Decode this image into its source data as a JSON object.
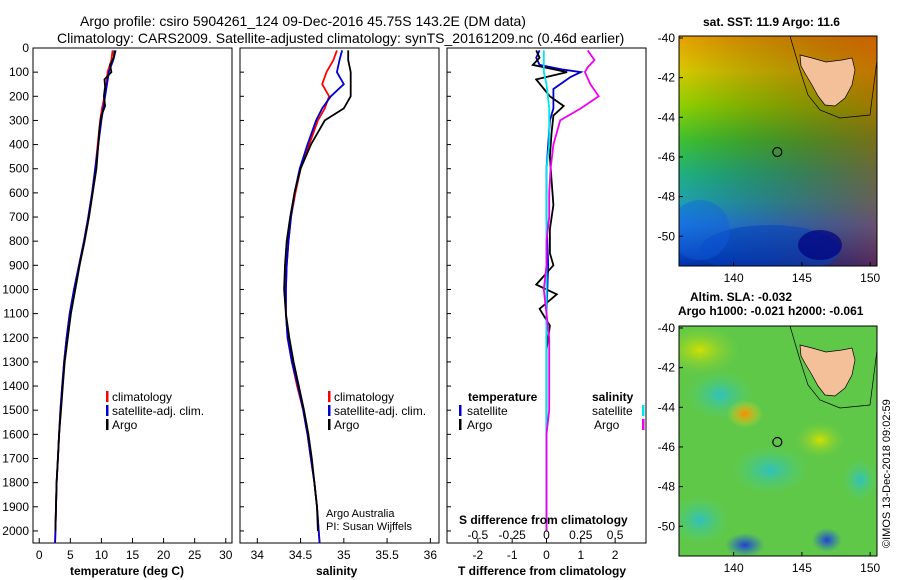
{
  "header": {
    "line1": "Argo profile: csiro 5904261_124 09-Dec-2016 45.75S 143.2E (DM data)",
    "line2": "Climatology: CARS2009. Satellite-adjusted climatology: synTS_20161209.nc (0.46d earlier)"
  },
  "colors": {
    "climatology": "#ff0000",
    "satellite": "#0000cc",
    "argo": "#000000",
    "sat_S": "#00e5ee",
    "argo_S": "#ee00ee"
  },
  "chart_data": [
    {
      "type": "line",
      "id": "temperature",
      "xlabel": "temperature (deg C)",
      "ylabel": "",
      "xlim": [
        -1,
        31
      ],
      "ylim": [
        2050,
        0
      ],
      "xticks": [
        "0",
        "5",
        "10",
        "15",
        "20",
        "25",
        "30"
      ],
      "yticks": [
        "0",
        "100",
        "200",
        "300",
        "400",
        "500",
        "600",
        "700",
        "800",
        "900",
        "1000",
        "1100",
        "1200",
        "1300",
        "1400",
        "1500",
        "1600",
        "1700",
        "1800",
        "1900",
        "2000"
      ],
      "legend": [
        "climatology",
        "satellite-adj. clim.",
        "Argo"
      ],
      "series": [
        {
          "name": "climatology",
          "points": [
            [
              11.8,
              10
            ],
            [
              11.6,
              50
            ],
            [
              11.0,
              100
            ],
            [
              10.8,
              150
            ],
            [
              10.5,
              200
            ],
            [
              10.1,
              250
            ],
            [
              9.8,
              300
            ],
            [
              9.4,
              400
            ],
            [
              9.0,
              500
            ],
            [
              8.5,
              600
            ],
            [
              7.9,
              700
            ],
            [
              7.2,
              800
            ],
            [
              6.4,
              900
            ],
            [
              5.6,
              1000
            ],
            [
              4.9,
              1100
            ],
            [
              4.4,
              1200
            ],
            [
              4.0,
              1300
            ],
            [
              3.7,
              1400
            ],
            [
              3.4,
              1500
            ],
            [
              3.2,
              1600
            ],
            [
              3.0,
              1700
            ],
            [
              2.8,
              1800
            ],
            [
              2.7,
              1900
            ],
            [
              2.6,
              2000
            ],
            [
              2.55,
              2050
            ]
          ]
        },
        {
          "name": "satellite-adj. clim.",
          "points": [
            [
              12.3,
              10
            ],
            [
              11.9,
              50
            ],
            [
              11.2,
              100
            ],
            [
              10.9,
              150
            ],
            [
              10.6,
              200
            ],
            [
              10.3,
              250
            ],
            [
              10.0,
              300
            ],
            [
              9.5,
              400
            ],
            [
              9.0,
              500
            ],
            [
              8.5,
              600
            ],
            [
              7.9,
              700
            ],
            [
              7.2,
              800
            ],
            [
              6.4,
              900
            ],
            [
              5.6,
              1000
            ],
            [
              4.9,
              1100
            ],
            [
              4.4,
              1200
            ],
            [
              4.0,
              1300
            ],
            [
              3.7,
              1400
            ],
            [
              3.4,
              1500
            ],
            [
              3.2,
              1600
            ],
            [
              3.0,
              1700
            ],
            [
              2.8,
              1800
            ],
            [
              2.7,
              1900
            ],
            [
              2.6,
              2000
            ],
            [
              2.55,
              2050
            ]
          ]
        },
        {
          "name": "Argo",
          "points": [
            [
              12.1,
              10
            ],
            [
              12.0,
              40
            ],
            [
              11.4,
              70
            ],
            [
              11.6,
              100
            ],
            [
              10.5,
              130
            ],
            [
              10.6,
              160
            ],
            [
              10.4,
              200
            ],
            [
              10.6,
              240
            ],
            [
              10.0,
              280
            ],
            [
              9.7,
              330
            ],
            [
              9.5,
              400
            ],
            [
              9.2,
              500
            ],
            [
              8.6,
              600
            ],
            [
              8.0,
              700
            ],
            [
              7.3,
              800
            ],
            [
              6.5,
              900
            ],
            [
              5.8,
              1000
            ],
            [
              5.1,
              1100
            ],
            [
              4.6,
              1200
            ],
            [
              4.1,
              1300
            ],
            [
              3.8,
              1400
            ],
            [
              3.5,
              1500
            ],
            [
              3.2,
              1600
            ],
            [
              3.0,
              1700
            ],
            [
              2.8,
              1800
            ],
            [
              2.7,
              1900
            ],
            [
              2.6,
              2000
            ]
          ]
        }
      ]
    },
    {
      "type": "line",
      "id": "salinity",
      "xlabel": "salinity",
      "xlim": [
        33.8,
        36.1
      ],
      "ylim": [
        2050,
        0
      ],
      "xticks": [
        "34",
        "34.5",
        "35",
        "35.5",
        "36"
      ],
      "legend": [
        "climatology",
        "satellite-adj. clim.",
        "Argo"
      ],
      "annotation": [
        "Argo Australia",
        "PI: Susan Wijffels"
      ],
      "series": [
        {
          "name": "climatology",
          "points": [
            [
              34.92,
              10
            ],
            [
              34.88,
              50
            ],
            [
              34.8,
              100
            ],
            [
              34.75,
              150
            ],
            [
              34.83,
              200
            ],
            [
              34.78,
              250
            ],
            [
              34.7,
              300
            ],
            [
              34.6,
              400
            ],
            [
              34.5,
              500
            ],
            [
              34.44,
              600
            ],
            [
              34.39,
              700
            ],
            [
              34.36,
              800
            ],
            [
              34.34,
              900
            ],
            [
              34.33,
              1000
            ],
            [
              34.33,
              1100
            ],
            [
              34.35,
              1200
            ],
            [
              34.4,
              1300
            ],
            [
              34.46,
              1400
            ],
            [
              34.53,
              1500
            ],
            [
              34.58,
              1600
            ],
            [
              34.62,
              1700
            ],
            [
              34.66,
              1800
            ],
            [
              34.69,
              1900
            ],
            [
              34.71,
              2000
            ],
            [
              34.72,
              2050
            ]
          ]
        },
        {
          "name": "satellite-adj. clim.",
          "points": [
            [
              34.98,
              10
            ],
            [
              34.95,
              50
            ],
            [
              34.92,
              100
            ],
            [
              35.0,
              150
            ],
            [
              34.85,
              200
            ],
            [
              34.75,
              250
            ],
            [
              34.68,
              300
            ],
            [
              34.58,
              400
            ],
            [
              34.49,
              500
            ],
            [
              34.43,
              600
            ],
            [
              34.39,
              700
            ],
            [
              34.36,
              800
            ],
            [
              34.34,
              900
            ],
            [
              34.33,
              1000
            ],
            [
              34.33,
              1100
            ],
            [
              34.35,
              1200
            ],
            [
              34.4,
              1300
            ],
            [
              34.47,
              1400
            ],
            [
              34.53,
              1500
            ],
            [
              34.58,
              1600
            ],
            [
              34.62,
              1700
            ],
            [
              34.66,
              1800
            ],
            [
              34.69,
              1900
            ],
            [
              34.71,
              2000
            ],
            [
              34.72,
              2050
            ]
          ]
        },
        {
          "name": "Argo",
          "points": [
            [
              35.05,
              10
            ],
            [
              35.05,
              50
            ],
            [
              35.08,
              100
            ],
            [
              35.08,
              150
            ],
            [
              35.08,
              200
            ],
            [
              35.0,
              250
            ],
            [
              34.78,
              300
            ],
            [
              34.62,
              400
            ],
            [
              34.5,
              500
            ],
            [
              34.43,
              600
            ],
            [
              34.38,
              700
            ],
            [
              34.34,
              800
            ],
            [
              34.32,
              900
            ],
            [
              34.31,
              1000
            ],
            [
              34.33,
              1100
            ],
            [
              34.37,
              1200
            ],
            [
              34.42,
              1300
            ],
            [
              34.48,
              1400
            ],
            [
              34.54,
              1500
            ],
            [
              34.59,
              1600
            ],
            [
              34.63,
              1700
            ],
            [
              34.66,
              1800
            ],
            [
              34.69,
              1900
            ],
            [
              34.7,
              2000
            ]
          ]
        }
      ]
    },
    {
      "type": "line",
      "id": "difference",
      "xlabel": "T difference from climatology",
      "xlabel_top": "S difference from climatology",
      "xlim": [
        -2.9,
        2.9
      ],
      "ylim": [
        2050,
        0
      ],
      "xticks": [
        "-2",
        "-1",
        "0",
        "1",
        "2"
      ],
      "xticks_S": [
        "-0.5",
        "-0.25",
        "0",
        "0.25",
        "0.5"
      ],
      "legend_left_title": "temperature",
      "legend_right_title": "salinity",
      "legend_left": [
        "satellite",
        "Argo"
      ],
      "legend_right": [
        "satellite",
        "Argo"
      ],
      "series": [
        {
          "name": "T satellite",
          "points": [
            [
              -0.2,
              10
            ],
            [
              -0.3,
              40
            ],
            [
              -0.2,
              70
            ],
            [
              0.5,
              90
            ],
            [
              1.0,
              100
            ],
            [
              0.7,
              120
            ],
            [
              0.2,
              170
            ],
            [
              0.2,
              250
            ],
            [
              0.1,
              300
            ],
            [
              0.05,
              400
            ],
            [
              0.0,
              500
            ],
            [
              0.0,
              700
            ],
            [
              0.05,
              900
            ],
            [
              0.0,
              1100
            ],
            [
              0.0,
              1300
            ],
            [
              0.0,
              1500
            ],
            [
              0.0,
              1700
            ],
            [
              0.0,
              2000
            ]
          ]
        },
        {
          "name": "T Argo",
          "points": [
            [
              -0.3,
              10
            ],
            [
              -0.2,
              40
            ],
            [
              -0.4,
              70
            ],
            [
              0.6,
              100
            ],
            [
              -0.3,
              130
            ],
            [
              0.1,
              200
            ],
            [
              0.5,
              240
            ],
            [
              0.2,
              280
            ],
            [
              0.15,
              350
            ],
            [
              0.1,
              450
            ],
            [
              0.15,
              550
            ],
            [
              0.2,
              650
            ],
            [
              0.1,
              750
            ],
            [
              0.1,
              850
            ],
            [
              0.2,
              900
            ],
            [
              -0.3,
              980
            ],
            [
              0.3,
              1020
            ],
            [
              -0.2,
              1080
            ],
            [
              0.1,
              1150
            ],
            [
              0.0,
              1250
            ],
            [
              0.0,
              1500
            ],
            [
              0.0,
              1800
            ],
            [
              0.0,
              2000
            ]
          ]
        },
        {
          "name": "S satellite",
          "points": [
            [
              -0.02,
              10
            ],
            [
              -0.02,
              100
            ],
            [
              0.0,
              150
            ],
            [
              0.02,
              250
            ],
            [
              0.02,
              300
            ],
            [
              0.02,
              400
            ],
            [
              0.0,
              500
            ],
            [
              0.0,
              700
            ],
            [
              0.0,
              900
            ],
            [
              0.0,
              1100
            ],
            [
              0.0,
              1300
            ],
            [
              0.0,
              1500
            ],
            [
              0.0,
              1700
            ],
            [
              0.0,
              2000
            ]
          ]
        },
        {
          "name": "S Argo",
          "points": [
            [
              0.3,
              10
            ],
            [
              0.35,
              50
            ],
            [
              0.3,
              80
            ],
            [
              0.28,
              100
            ],
            [
              0.32,
              150
            ],
            [
              0.38,
              200
            ],
            [
              0.25,
              250
            ],
            [
              0.1,
              300
            ],
            [
              0.05,
              400
            ],
            [
              0.03,
              500
            ],
            [
              0.02,
              600
            ],
            [
              0.02,
              700
            ],
            [
              0.0,
              800
            ],
            [
              0.0,
              900
            ],
            [
              -0.02,
              1000
            ],
            [
              0.0,
              1100
            ],
            [
              0.02,
              1200
            ],
            [
              0.02,
              1300
            ],
            [
              0.02,
              1400
            ],
            [
              0.02,
              1500
            ],
            [
              0.0,
              1600
            ],
            [
              0.0,
              1700
            ],
            [
              0.0,
              1800
            ],
            [
              0.0,
              1900
            ],
            [
              0.0,
              2000
            ]
          ]
        }
      ]
    },
    {
      "type": "heatmap",
      "id": "sst_map",
      "title": "sat. SST: 11.9 Argo: 11.6",
      "xticks": [
        "140",
        "145",
        "150"
      ],
      "yticks": [
        "-40",
        "-42",
        "-44",
        "-46",
        "-48",
        "-50"
      ],
      "xlim": [
        136,
        150.5
      ],
      "ylim": [
        -51.5,
        -39.9
      ],
      "argo_position": [
        143.2,
        -45.75
      ]
    },
    {
      "type": "heatmap",
      "id": "sla_map",
      "title": "Altim. SLA: -0.032",
      "subtitle": "Argo h1000: -0.021 h2000: -0.061",
      "xticks": [
        "140",
        "145",
        "150"
      ],
      "yticks": [
        "-40",
        "-42",
        "-44",
        "-46",
        "-48",
        "-50"
      ],
      "xlim": [
        136,
        150.5
      ],
      "ylim": [
        -51.5,
        -39.9
      ],
      "argo_position": [
        143.2,
        -45.75
      ]
    }
  ],
  "stamp": "©IMOS 13-Dec-2018 09:02:59"
}
